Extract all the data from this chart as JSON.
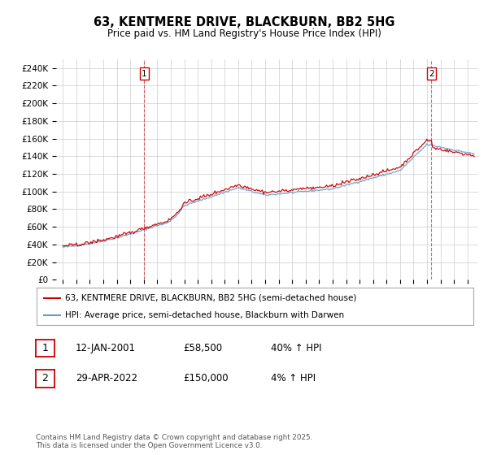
{
  "title": "63, KENTMERE DRIVE, BLACKBURN, BB2 5HG",
  "subtitle": "Price paid vs. HM Land Registry's House Price Index (HPI)",
  "legend_line1": "63, KENTMERE DRIVE, BLACKBURN, BB2 5HG (semi-detached house)",
  "legend_line2": "HPI: Average price, semi-detached house, Blackburn with Darwen",
  "red_color": "#cc0000",
  "blue_color": "#6699cc",
  "annotation1_label": "1",
  "annotation1_date": "12-JAN-2001",
  "annotation1_price": "£58,500",
  "annotation1_hpi": "40% ↑ HPI",
  "annotation2_label": "2",
  "annotation2_date": "29-APR-2022",
  "annotation2_price": "£150,000",
  "annotation2_hpi": "4% ↑ HPI",
  "footer": "Contains HM Land Registry data © Crown copyright and database right 2025.\nThis data is licensed under the Open Government Licence v3.0.",
  "ylim": [
    0,
    250000
  ],
  "yticks": [
    0,
    20000,
    40000,
    60000,
    80000,
    100000,
    120000,
    140000,
    160000,
    180000,
    200000,
    220000,
    240000
  ],
  "background_color": "#ffffff",
  "plot_bg_color": "#ffffff"
}
